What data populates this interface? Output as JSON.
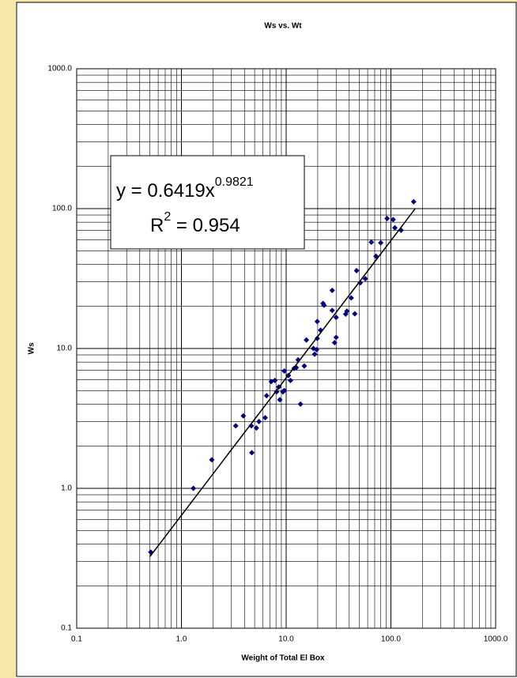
{
  "chart_data": {
    "type": "scatter",
    "title": "Ws vs. Wt",
    "x_label": "Weight of Total El Box",
    "y_label": "Ws",
    "log_x": true,
    "log_y": true,
    "grid": true,
    "color": "#000080",
    "xlim": [
      0.1,
      1000
    ],
    "ylim": [
      0.1,
      1000
    ],
    "xticks": [
      0.1,
      {
        "value": 1,
        "label": "1.0"
      },
      {
        "value": 10,
        "label": "10.0"
      },
      {
        "value": 100,
        "label": "100.0"
      },
      {
        "value": 1000,
        "label": "1000.0"
      }
    ],
    "yticks": [
      0.1,
      {
        "value": 1,
        "label": "1.0"
      },
      {
        "value": 10,
        "label": "10.0"
      },
      {
        "value": 100,
        "label": "100.0"
      },
      {
        "value": 1000,
        "label": "1000.0"
      }
    ],
    "x": [
      0.51,
      1.3,
      1.95,
      3.3,
      3.9,
      4.65,
      4.7,
      5.2,
      5.5,
      6.3,
      6.5,
      7.2,
      7.8,
      8.1,
      8.5,
      8.7,
      9.3,
      9.6,
      9.6,
      10.5,
      11,
      11.9,
      12.5,
      13,
      13.7,
      14.9,
      15.6,
      18.2,
      18.7,
      19.5,
      19.8,
      19.8,
      21.3,
      22.5,
      23,
      27.5,
      27.5,
      29,
      30,
      30,
      37,
      38,
      41.8,
      45.2,
      47,
      51,
      57,
      65,
      72,
      80,
      92,
      105,
      109,
      125,
      165
    ],
    "values": [
      0.35,
      1.0,
      1.6,
      2.8,
      3.3,
      2.8,
      1.8,
      2.7,
      3.0,
      3.2,
      4.6,
      5.8,
      5.9,
      4.9,
      5.3,
      4.3,
      4.9,
      5.0,
      6.9,
      6.4,
      5.9,
      7.2,
      7.3,
      8.3,
      4.0,
      7.5,
      11.5,
      10.0,
      9.1,
      9.8,
      15.6,
      11.8,
      13.5,
      21,
      20.4,
      18.7,
      26,
      11,
      12,
      16.7,
      17.6,
      18.5,
      23,
      17.7,
      36,
      29.5,
      31.5,
      57.5,
      45.7,
      57,
      85,
      83.5,
      73,
      70,
      112
    ],
    "trendline": {
      "coefficient": 0.6419,
      "exponent": 0.9821,
      "x_range": [
        0.5,
        170
      ]
    },
    "equation": {
      "text": "y = 0.6419x",
      "exponent": "0.9821",
      "r_text": "R",
      "r_power": "2",
      "r_value": " = 0.954"
    }
  }
}
